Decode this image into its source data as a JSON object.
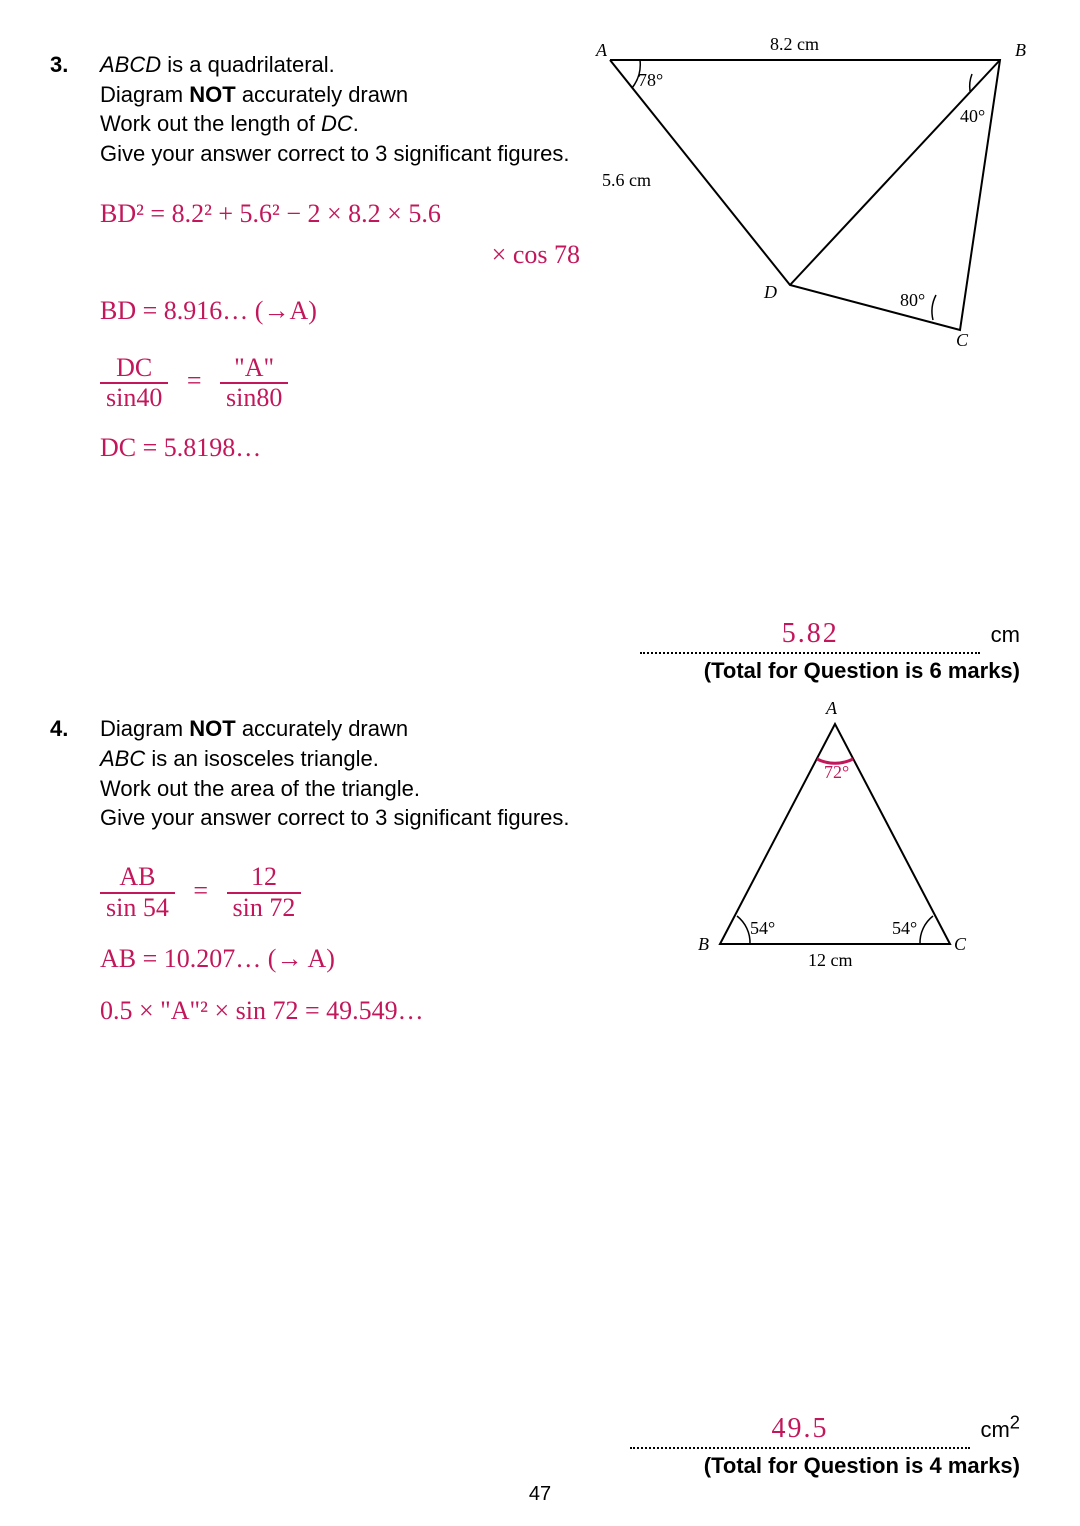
{
  "page_number": "47",
  "q3": {
    "number": "3.",
    "prompt_lines": [
      "<em>ABCD</em> is a quadrilateral.",
      "Diagram <b>NOT</b> accurately drawn",
      "Work out the length of <em>DC</em>.",
      "Give your answer correct to 3 significant figures."
    ],
    "work": {
      "line1a": "BD² = 8.2² + 5.6² − 2 × 8.2 × 5.6",
      "line1b": "× cos 78",
      "line2": "BD = 8.916…  (→A)",
      "frac_num_l": "DC",
      "frac_den_l": "sin40",
      "frac_num_r": "\"A\"",
      "frac_den_r": "sin80",
      "line4": "DC = 5.8198…"
    },
    "diagram": {
      "A": "A",
      "B": "B",
      "C": "C",
      "D": "D",
      "AB": "8.2 cm",
      "AD": "5.6 cm",
      "angA": "78°",
      "angB": "40°",
      "angC": "80°"
    },
    "answer": "5.82",
    "unit": "cm",
    "total": "(Total for Question is 6 marks)"
  },
  "q4": {
    "number": "4.",
    "prompt_lines": [
      "Diagram <b>NOT</b> accurately drawn",
      "<em>ABC</em> is an isosceles triangle.",
      "Work out the area of the triangle.",
      "Give your answer correct to 3 significant figures."
    ],
    "work": {
      "frac_num_l": "AB",
      "frac_den_l": "sin 54",
      "frac_num_r": "12",
      "frac_den_r": "sin 72",
      "line2": "AB = 10.207…   (→ A)",
      "line3": "0.5 × \"A\"² × sin 72 = 49.549…"
    },
    "diagram": {
      "A": "A",
      "B": "B",
      "C": "C",
      "angA": "72°",
      "angB": "54°",
      "angC": "54°",
      "BC": "12 cm"
    },
    "answer": "49.5",
    "unit_html": "cm<sup>2</sup>",
    "total": "(Total for Question is 4 marks)"
  }
}
